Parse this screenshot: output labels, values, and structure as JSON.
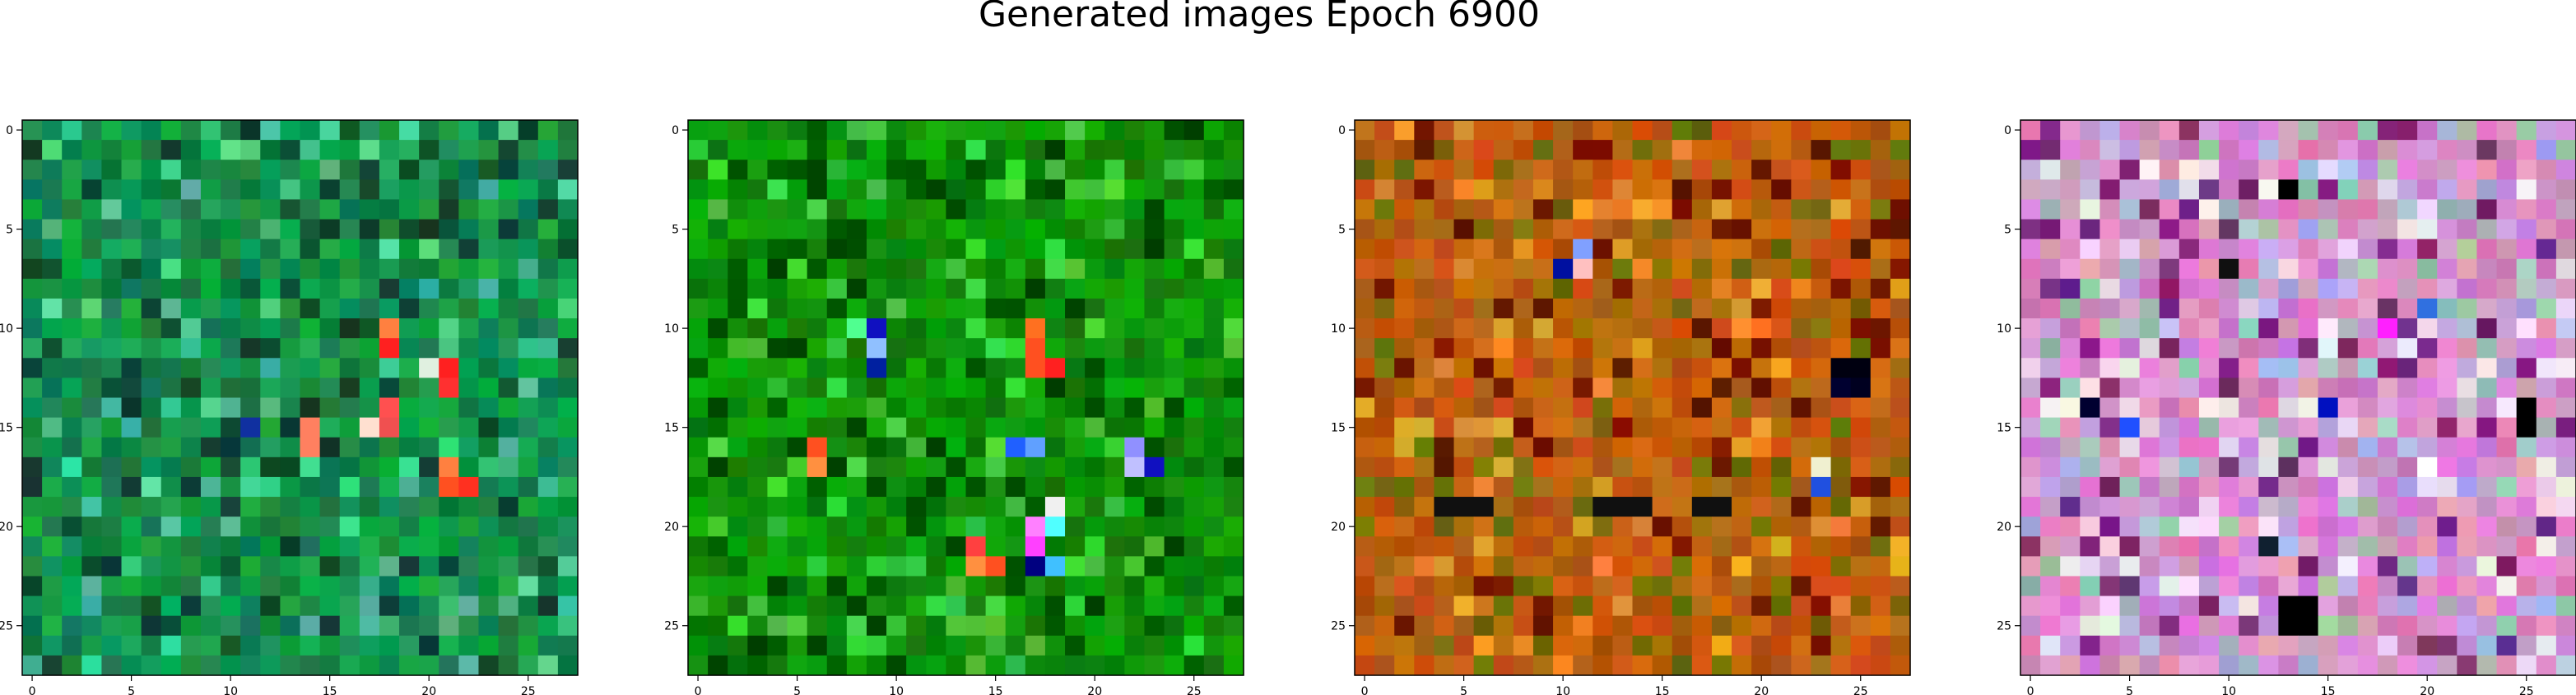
{
  "figure": {
    "title": "Generated images Epoch 6900"
  },
  "panels": [
    {
      "name": "panel-1",
      "palette": "green",
      "bright_cells": [
        [
          10,
          18,
          "#ff8040"
        ],
        [
          11,
          18,
          "#ff2020"
        ],
        [
          12,
          21,
          "#ff2020"
        ],
        [
          12,
          20,
          "#e0f0e0"
        ],
        [
          13,
          21,
          "#ff3030"
        ],
        [
          14,
          18,
          "#ff5050"
        ],
        [
          15,
          18,
          "#f05050"
        ],
        [
          15,
          17,
          "#ffe0d0"
        ],
        [
          15,
          14,
          "#ff8060"
        ],
        [
          16,
          14,
          "#ff8060"
        ],
        [
          15,
          11,
          "#1030a0"
        ],
        [
          17,
          21,
          "#ff8040"
        ],
        [
          18,
          21,
          "#ff5020"
        ],
        [
          18,
          22,
          "#ff3020"
        ]
      ]
    },
    {
      "name": "panel-2",
      "palette": "deepgreen",
      "bright_cells": [
        [
          10,
          9,
          "#1010c0"
        ],
        [
          11,
          9,
          "#90c0ff"
        ],
        [
          12,
          9,
          "#0020a0"
        ],
        [
          10,
          17,
          "#ff7020"
        ],
        [
          11,
          17,
          "#ff5020"
        ],
        [
          12,
          17,
          "#ff5020"
        ],
        [
          12,
          18,
          "#ff2020"
        ],
        [
          10,
          8,
          "#50ff90"
        ],
        [
          17,
          6,
          "#ff9040"
        ],
        [
          16,
          6,
          "#ff5020"
        ],
        [
          16,
          16,
          "#2060ff"
        ],
        [
          16,
          17,
          "#60a0ff"
        ],
        [
          16,
          22,
          "#9090ff"
        ],
        [
          17,
          22,
          "#c0c0ff"
        ],
        [
          17,
          23,
          "#1010c0"
        ],
        [
          19,
          18,
          "#f0f0f0"
        ],
        [
          20,
          17,
          "#ff80ff"
        ],
        [
          20,
          18,
          "#50ffff"
        ],
        [
          21,
          14,
          "#ff4040"
        ],
        [
          22,
          14,
          "#ff9040"
        ],
        [
          22,
          15,
          "#ff5020"
        ],
        [
          21,
          17,
          "#ff40ff"
        ],
        [
          22,
          17,
          "#000080"
        ],
        [
          22,
          18,
          "#40c0ff"
        ]
      ]
    },
    {
      "name": "panel-3",
      "palette": "orange",
      "bright_cells": [
        [
          6,
          11,
          "#80a0ff"
        ],
        [
          7,
          11,
          "#ffc0c0"
        ],
        [
          7,
          10,
          "#0010a0"
        ],
        [
          10,
          19,
          "#ff9030"
        ],
        [
          10,
          20,
          "#ff7020"
        ],
        [
          12,
          24,
          "#000010"
        ],
        [
          12,
          25,
          "#000010"
        ],
        [
          13,
          24,
          "#000030"
        ],
        [
          13,
          25,
          "#000020"
        ],
        [
          17,
          23,
          "#f0f0d0"
        ],
        [
          18,
          23,
          "#2050e0"
        ],
        [
          19,
          4,
          "#101010"
        ],
        [
          19,
          5,
          "#101010"
        ],
        [
          19,
          6,
          "#101010"
        ],
        [
          19,
          12,
          "#101010"
        ],
        [
          19,
          13,
          "#101010"
        ],
        [
          19,
          14,
          "#101010"
        ],
        [
          19,
          17,
          "#101010"
        ],
        [
          19,
          18,
          "#101010"
        ],
        [
          22,
          12,
          "#ff8040"
        ]
      ]
    },
    {
      "name": "panel-4",
      "palette": "pink",
      "bright_cells": [
        [
          3,
          13,
          "#000000"
        ],
        [
          3,
          12,
          "#f8f8f0"
        ],
        [
          7,
          10,
          "#101010"
        ],
        [
          10,
          18,
          "#ff20ff"
        ],
        [
          14,
          15,
          "#0010c0"
        ],
        [
          14,
          25,
          "#000000"
        ],
        [
          15,
          25,
          "#000000"
        ],
        [
          14,
          3,
          "#000030"
        ],
        [
          17,
          20,
          "#ffffff"
        ],
        [
          21,
          12,
          "#102030"
        ],
        [
          24,
          13,
          "#000000"
        ],
        [
          24,
          14,
          "#000000"
        ],
        [
          25,
          13,
          "#000000"
        ],
        [
          25,
          14,
          "#000000"
        ],
        [
          9,
          20,
          "#3070e0"
        ],
        [
          15,
          5,
          "#2050ff"
        ]
      ]
    }
  ],
  "axes": {
    "tick_values": [
      0,
      5,
      10,
      15,
      20,
      25
    ]
  }
}
